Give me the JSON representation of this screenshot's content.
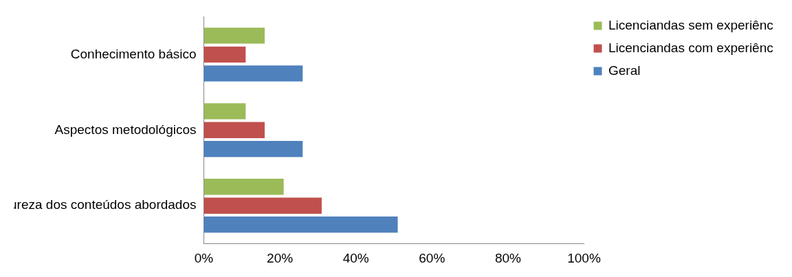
{
  "chart_data": {
    "type": "bar",
    "orientation": "horizontal",
    "categories": [
      "Conhecimento básico",
      "Aspectos metodológicos",
      "Natureza dos conteúdos abordados"
    ],
    "series": [
      {
        "name": "Licenciandas sem experiência docente",
        "color": "#9bbb59",
        "values": [
          16,
          11,
          21
        ]
      },
      {
        "name": "Licenciandas com experiência docente",
        "color": "#c0504d",
        "values": [
          11,
          16,
          31
        ]
      },
      {
        "name": "Geral",
        "color": "#4f81bd",
        "values": [
          26,
          26,
          51
        ]
      }
    ],
    "xlim": [
      0,
      100
    ],
    "xticks": [
      {
        "value": 0,
        "label": "0%"
      },
      {
        "value": 20,
        "label": "20%"
      },
      {
        "value": 40,
        "label": "40%"
      },
      {
        "value": 60,
        "label": "60%"
      },
      {
        "value": 80,
        "label": "80%"
      },
      {
        "value": 100,
        "label": "100%"
      }
    ],
    "grid": false,
    "legend": "right"
  }
}
